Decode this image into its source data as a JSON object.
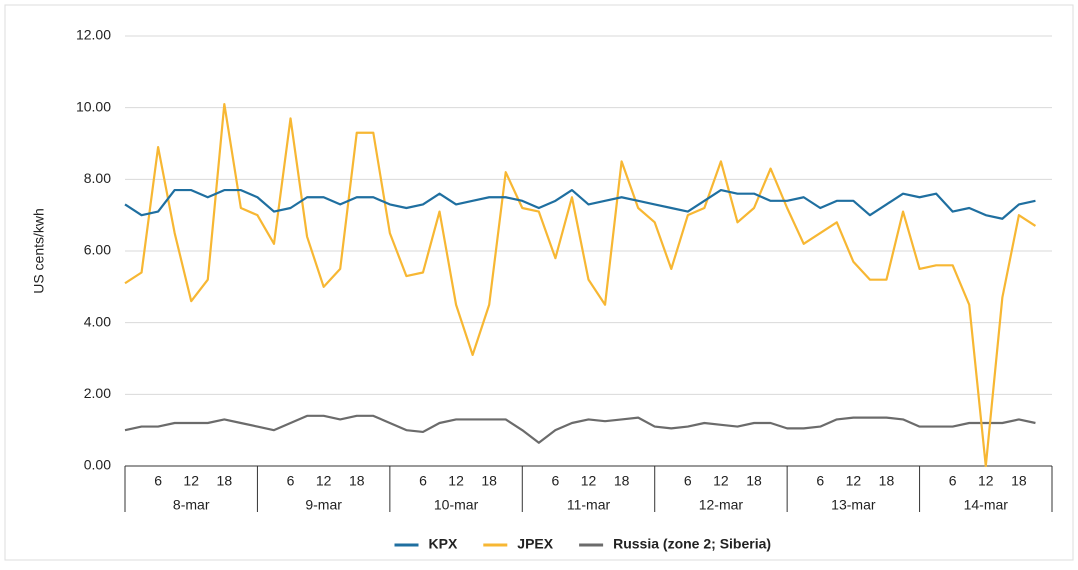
{
  "chart_data": {
    "type": "line",
    "y_label": "US cents/kwh",
    "categories": [
      null,
      null,
      "6",
      null,
      "12",
      null,
      "18",
      null,
      null,
      null,
      "6",
      null,
      "12",
      null,
      "18",
      null,
      null,
      null,
      "6",
      null,
      "12",
      null,
      "18",
      null,
      null,
      null,
      "6",
      null,
      "12",
      null,
      "18",
      null,
      null,
      null,
      "6",
      null,
      "12",
      null,
      "18",
      null,
      null,
      null,
      "6",
      null,
      "12",
      null,
      "18",
      null,
      null,
      null,
      "6",
      null,
      "12",
      null,
      "18",
      null
    ],
    "days": [
      "8-mar",
      "9-mar",
      "10-mar",
      "11-mar",
      "12-mar",
      "13-mar",
      "14-mar"
    ],
    "series": [
      {
        "name": "KPX",
        "color": "#1f6fa0",
        "values": [
          7.3,
          7.0,
          7.1,
          7.7,
          7.7,
          7.5,
          7.7,
          7.7,
          7.5,
          7.1,
          7.2,
          7.5,
          7.5,
          7.3,
          7.5,
          7.5,
          7.3,
          7.2,
          7.3,
          7.6,
          7.3,
          7.4,
          7.5,
          7.5,
          7.4,
          7.2,
          7.4,
          7.7,
          7.3,
          7.4,
          7.5,
          7.4,
          7.3,
          7.2,
          7.1,
          7.4,
          7.7,
          7.6,
          7.6,
          7.4,
          7.4,
          7.5,
          7.2,
          7.4,
          7.4,
          7.0,
          7.3,
          7.6,
          7.5,
          7.6,
          7.1,
          7.2,
          7.0,
          6.9,
          7.3,
          7.4
        ]
      },
      {
        "name": "JPEX",
        "color": "#f7b733",
        "values": [
          5.1,
          5.4,
          8.9,
          6.5,
          4.6,
          5.2,
          10.1,
          7.2,
          7.0,
          6.2,
          9.7,
          6.4,
          5.0,
          5.5,
          9.3,
          9.3,
          6.5,
          5.3,
          5.4,
          7.1,
          4.5,
          3.1,
          4.5,
          8.2,
          7.2,
          7.1,
          5.8,
          7.5,
          5.2,
          4.5,
          8.5,
          7.2,
          6.8,
          5.5,
          7.0,
          7.2,
          8.5,
          6.8,
          7.2,
          8.3,
          7.2,
          6.2,
          6.5,
          6.8,
          5.7,
          5.2,
          5.2,
          7.1,
          5.5,
          5.6,
          5.6,
          4.5,
          0.0,
          4.7,
          7.0,
          6.7
        ]
      },
      {
        "name": "Russia (zone 2; Siberia)",
        "color": "#6b6b6b",
        "values": [
          1.0,
          1.1,
          1.1,
          1.2,
          1.2,
          1.2,
          1.3,
          1.2,
          1.1,
          1.0,
          1.2,
          1.4,
          1.4,
          1.3,
          1.4,
          1.4,
          1.2,
          1.0,
          0.95,
          1.2,
          1.3,
          1.3,
          1.3,
          1.3,
          1.0,
          0.65,
          1.0,
          1.2,
          1.3,
          1.25,
          1.3,
          1.35,
          1.1,
          1.05,
          1.1,
          1.2,
          1.15,
          1.1,
          1.2,
          1.2,
          1.05,
          1.05,
          1.1,
          1.3,
          1.35,
          1.35,
          1.35,
          1.3,
          1.1,
          1.1,
          1.1,
          1.2,
          1.2,
          1.2,
          1.3,
          1.2
        ]
      }
    ],
    "ylim": [
      0,
      12
    ],
    "yticks": [
      {
        "value": 0,
        "label": "0.00"
      },
      {
        "value": 2,
        "label": "2.00"
      },
      {
        "value": 4,
        "label": "4.00"
      },
      {
        "value": 6,
        "label": "6.00"
      },
      {
        "value": 8,
        "label": "8.00"
      },
      {
        "value": 10,
        "label": "10.00"
      },
      {
        "value": 12,
        "label": "12.00"
      }
    ],
    "grid": true,
    "legend": "bottom"
  }
}
